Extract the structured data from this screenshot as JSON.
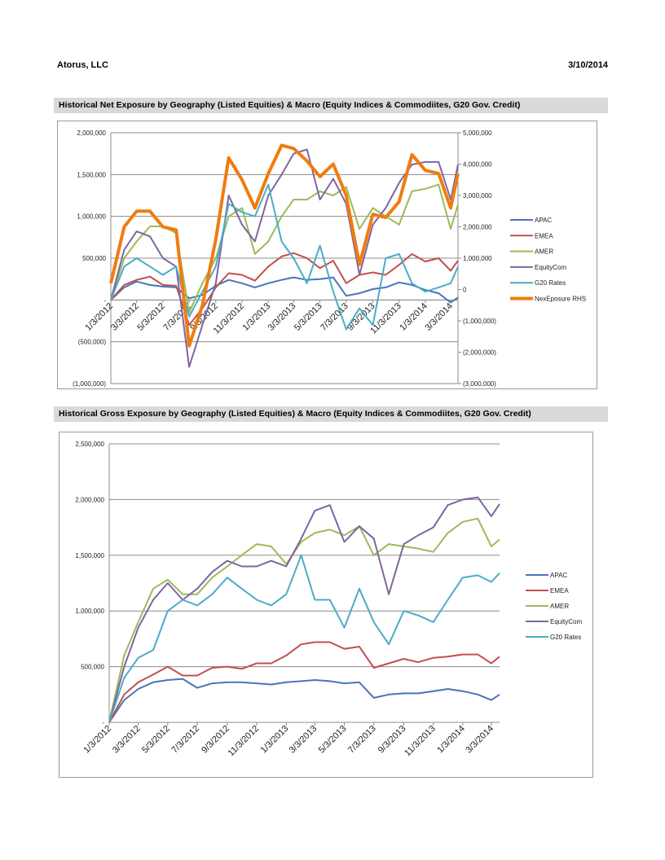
{
  "header": {
    "company": "Atorus, LLC",
    "date": "3/10/2014"
  },
  "colors": {
    "APAC": "#4a74b8",
    "EMEA": "#c0504d",
    "AMER": "#9bbb59",
    "EquityCom": "#8064a2",
    "G20 Rates": "#4bacc6",
    "NexEposure RHS": "#f07c10"
  },
  "chart_data": [
    {
      "type": "line",
      "title": "Historical Net Exposure by Geography (Listed Equities) & Macro (Equity Indices & Commodiites, G20 Gov. Credit)",
      "ylim": [
        -1000000,
        2000000
      ],
      "y2lim": [
        -3000000,
        5000000
      ],
      "yticks": [
        2000000,
        1500000,
        1000000,
        500000,
        0,
        -500000,
        -1000000
      ],
      "ytick_labels": [
        "2,000,000",
        "1,500,000",
        "1,000,000",
        "500,000",
        "-",
        "(500,000)",
        "(1,000,000)"
      ],
      "y2ticks": [
        5000000,
        4000000,
        3000000,
        2000000,
        1000000,
        0,
        -1000000,
        -2000000,
        -3000000
      ],
      "y2tick_labels": [
        "5,000,000",
        "4,000,000",
        "3,000,000",
        "2,000,000",
        "1,000,000",
        "0",
        "(1,000,000)",
        "(2,000,000)",
        "(3,000,000)"
      ],
      "xtick_labels": [
        "1/3/2012",
        "3/3/2012",
        "5/3/2012",
        "7/3/2012",
        "9/3/2012",
        "11/3/2012",
        "1/3/2013",
        "3/3/2013",
        "5/3/2013",
        "7/3/2013",
        "9/3/2013",
        "11/3/2013",
        "1/3/2014",
        "3/3/2014"
      ],
      "grid": true,
      "legend": "right",
      "x": [
        "1/3/2012",
        "2/3/2012",
        "3/3/2012",
        "4/3/2012",
        "5/3/2012",
        "6/3/2012",
        "7/3/2012",
        "8/3/2012",
        "9/3/2012",
        "10/3/2012",
        "11/3/2012",
        "12/3/2012",
        "1/3/2013",
        "2/3/2013",
        "3/3/2013",
        "4/3/2013",
        "5/3/2013",
        "6/3/2013",
        "7/3/2013",
        "8/3/2013",
        "9/3/2013",
        "10/3/2013",
        "11/3/2013",
        "12/3/2013",
        "1/3/2014",
        "2/3/2014",
        "3/3/2014",
        "3/20/2014"
      ],
      "series": [
        {
          "name": "APAC",
          "axis": "left",
          "values": [
            0,
            150000,
            220000,
            180000,
            160000,
            150000,
            20000,
            60000,
            170000,
            240000,
            200000,
            150000,
            200000,
            240000,
            270000,
            240000,
            250000,
            270000,
            50000,
            80000,
            130000,
            150000,
            210000,
            180000,
            120000,
            80000,
            -30000,
            30000
          ]
        },
        {
          "name": "EMEA",
          "axis": "left",
          "values": [
            0,
            180000,
            240000,
            280000,
            180000,
            170000,
            -300000,
            -100000,
            150000,
            320000,
            300000,
            230000,
            400000,
            520000,
            560000,
            500000,
            380000,
            470000,
            200000,
            300000,
            330000,
            300000,
            420000,
            550000,
            460000,
            500000,
            350000,
            470000
          ]
        },
        {
          "name": "AMER",
          "axis": "left",
          "values": [
            0,
            500000,
            700000,
            880000,
            880000,
            800000,
            -150000,
            200000,
            500000,
            1000000,
            1100000,
            550000,
            700000,
            1000000,
            1200000,
            1200000,
            1300000,
            1250000,
            1350000,
            850000,
            1100000,
            1000000,
            900000,
            1300000,
            1330000,
            1380000,
            850000,
            1140000
          ]
        },
        {
          "name": "EquityCom",
          "axis": "left",
          "values": [
            0,
            600000,
            820000,
            760000,
            500000,
            400000,
            -800000,
            -300000,
            200000,
            1250000,
            900000,
            700000,
            1250000,
            1500000,
            1750000,
            1800000,
            1200000,
            1450000,
            1150000,
            300000,
            900000,
            1100000,
            1400000,
            1620000,
            1650000,
            1650000,
            1200000,
            1620000
          ]
        },
        {
          "name": "G20 Rates",
          "axis": "left",
          "values": [
            0,
            400000,
            500000,
            400000,
            300000,
            400000,
            -200000,
            100000,
            400000,
            1150000,
            1050000,
            1000000,
            1380000,
            700000,
            500000,
            200000,
            650000,
            100000,
            -350000,
            -100000,
            -300000,
            500000,
            550000,
            200000,
            100000,
            150000,
            200000,
            400000
          ]
        },
        {
          "name": "NexEposure RHS",
          "axis": "right",
          "values": [
            200000,
            2000000,
            2500000,
            2500000,
            2000000,
            1900000,
            -1800000,
            -500000,
            1600000,
            4200000,
            3500000,
            2600000,
            3700000,
            4600000,
            4500000,
            4100000,
            3600000,
            4000000,
            3000000,
            800000,
            2400000,
            2300000,
            2800000,
            4300000,
            3800000,
            3700000,
            2600000,
            3700000
          ]
        }
      ]
    },
    {
      "type": "line",
      "title": "Historical Gross Exposure by Geography (Listed Equities) & Macro (Equity Indices & Commodiites, G20 Gov. Credit)",
      "ylim": [
        0,
        2500000
      ],
      "yticks": [
        2500000,
        2000000,
        1500000,
        1000000,
        500000,
        0
      ],
      "ytick_labels": [
        "2,500,000",
        "2,000,000",
        "1,500,000",
        "1,000,000",
        "500,000",
        "-"
      ],
      "xtick_labels": [
        "1/3/2012",
        "3/3/2012",
        "5/3/2012",
        "7/3/2012",
        "9/3/2012",
        "11/3/2012",
        "1/3/2013",
        "3/3/2013",
        "5/3/2013",
        "7/3/2013",
        "9/3/2013",
        "11/3/2013",
        "1/3/2014",
        "3/3/2014"
      ],
      "grid": true,
      "legend": "right",
      "x": [
        "1/3/2012",
        "2/3/2012",
        "3/3/2012",
        "4/3/2012",
        "5/3/2012",
        "6/3/2012",
        "7/3/2012",
        "8/3/2012",
        "9/3/2012",
        "10/3/2012",
        "11/3/2012",
        "12/3/2012",
        "1/3/2013",
        "2/3/2013",
        "3/3/2013",
        "4/3/2013",
        "5/3/2013",
        "6/3/2013",
        "7/3/2013",
        "8/3/2013",
        "9/3/2013",
        "10/3/2013",
        "11/3/2013",
        "12/3/2013",
        "1/3/2014",
        "2/3/2014",
        "3/3/2014",
        "3/20/2014"
      ],
      "series": [
        {
          "name": "APAC",
          "values": [
            0,
            200000,
            300000,
            360000,
            380000,
            390000,
            310000,
            350000,
            360000,
            360000,
            350000,
            340000,
            360000,
            370000,
            380000,
            370000,
            350000,
            360000,
            220000,
            250000,
            260000,
            260000,
            280000,
            300000,
            280000,
            250000,
            200000,
            250000
          ]
        },
        {
          "name": "EMEA",
          "values": [
            0,
            250000,
            360000,
            430000,
            500000,
            420000,
            420000,
            490000,
            500000,
            480000,
            530000,
            530000,
            600000,
            700000,
            720000,
            720000,
            660000,
            680000,
            490000,
            530000,
            570000,
            540000,
            580000,
            590000,
            610000,
            610000,
            530000,
            590000
          ]
        },
        {
          "name": "AMER",
          "values": [
            0,
            600000,
            900000,
            1200000,
            1280000,
            1150000,
            1150000,
            1300000,
            1400000,
            1500000,
            1600000,
            1580000,
            1420000,
            1620000,
            1700000,
            1730000,
            1680000,
            1760000,
            1500000,
            1600000,
            1580000,
            1560000,
            1530000,
            1700000,
            1800000,
            1830000,
            1580000,
            1640000
          ]
        },
        {
          "name": "EquityCom",
          "values": [
            0,
            500000,
            850000,
            1100000,
            1250000,
            1100000,
            1200000,
            1350000,
            1450000,
            1400000,
            1400000,
            1450000,
            1400000,
            1650000,
            1900000,
            1950000,
            1620000,
            1760000,
            1650000,
            1150000,
            1600000,
            1680000,
            1750000,
            1950000,
            2000000,
            2020000,
            1850000,
            1960000
          ]
        },
        {
          "name": "G20 Rates",
          "values": [
            0,
            400000,
            580000,
            650000,
            1000000,
            1100000,
            1050000,
            1150000,
            1300000,
            1200000,
            1100000,
            1050000,
            1150000,
            1500000,
            1100000,
            1100000,
            850000,
            1200000,
            900000,
            700000,
            1000000,
            960000,
            900000,
            1100000,
            1300000,
            1320000,
            1260000,
            1340000
          ]
        }
      ]
    }
  ]
}
